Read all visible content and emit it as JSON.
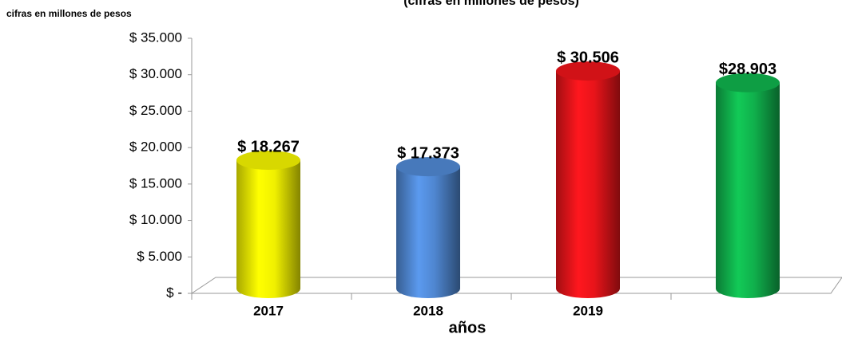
{
  "chart_data": {
    "type": "bar",
    "title": "(cifras en millones de pesos)",
    "y_axis_label": "cifras en millones de pesos",
    "x_axis_label": "años",
    "categories": [
      "2017",
      "2018",
      "2019",
      null
    ],
    "values": [
      18267,
      17373,
      30506,
      28903
    ],
    "value_labels": [
      "$ 18.267",
      "$ 17.373",
      "$ 30.506",
      "$28.903"
    ],
    "colors": [
      "#f0f000",
      "#4f86d0",
      "#e8141a",
      "#10b04c"
    ],
    "ylim": [
      0,
      35000
    ],
    "yticks": [
      {
        "value": 0,
        "label": "$ -"
      },
      {
        "value": 5000,
        "label": "$ 5.000"
      },
      {
        "value": 10000,
        "label": "$ 10.000"
      },
      {
        "value": 15000,
        "label": "$ 15.000"
      },
      {
        "value": 20000,
        "label": "$ 20.000"
      },
      {
        "value": 25000,
        "label": "$ 25.000"
      },
      {
        "value": 30000,
        "label": "$ 30.000"
      },
      {
        "value": 35000,
        "label": "$ 35.000"
      }
    ]
  }
}
